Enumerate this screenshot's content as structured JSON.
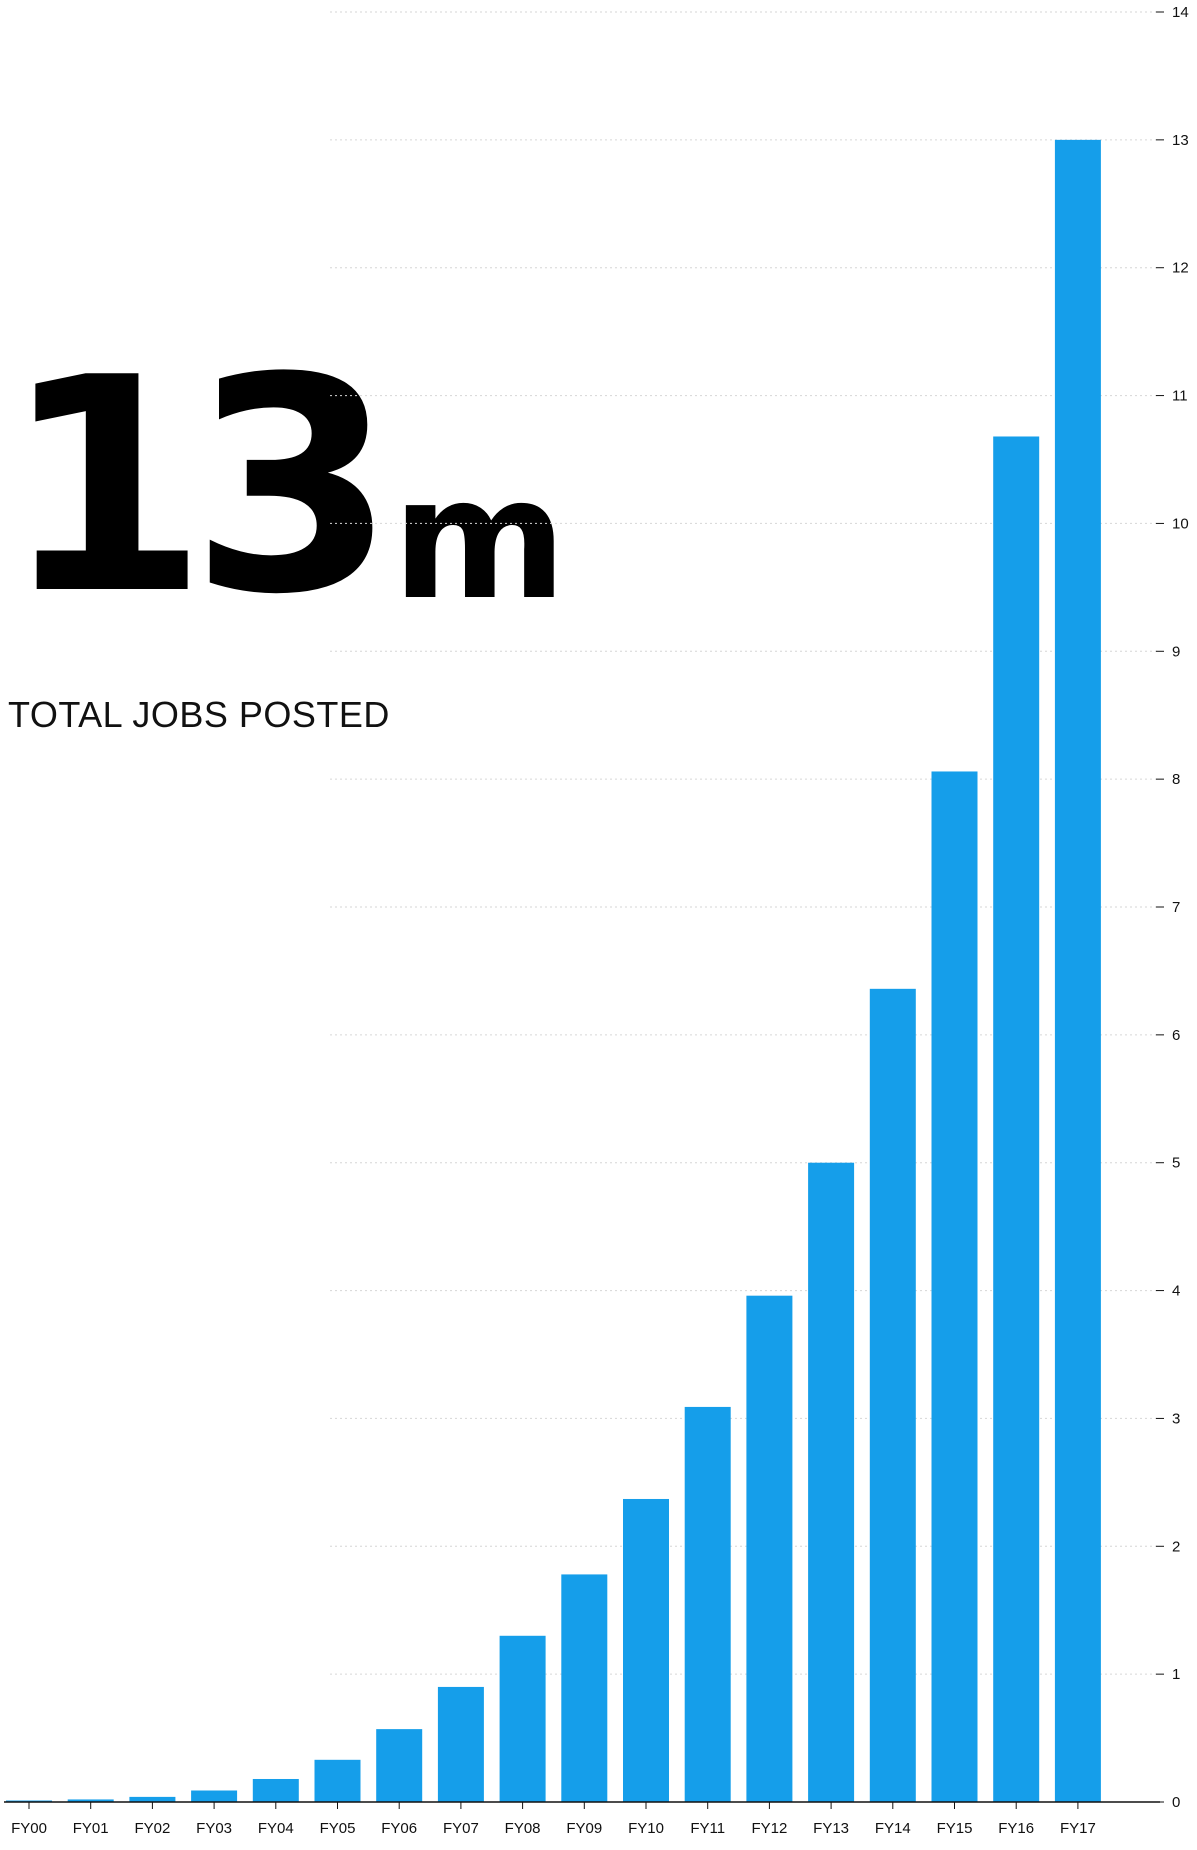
{
  "headline": {
    "value": "13",
    "unit": "m",
    "subtitle": "TOTAL JOBS POSTED"
  },
  "colors": {
    "bar": "#159EEA",
    "axis": "#111111",
    "grid": "#d6d6d6"
  },
  "chart_data": {
    "type": "bar",
    "title": "",
    "xlabel": "",
    "ylabel": "",
    "categories": [
      "FY00",
      "FY01",
      "FY02",
      "FY03",
      "FY04",
      "FY05",
      "FY06",
      "FY07",
      "FY08",
      "FY09",
      "FY10",
      "FY11",
      "FY12",
      "FY13",
      "FY14",
      "FY15",
      "FY16",
      "FY17"
    ],
    "values": [
      0.01,
      0.02,
      0.04,
      0.09,
      0.18,
      0.33,
      0.57,
      0.9,
      1.3,
      1.78,
      2.37,
      3.09,
      3.96,
      5.0,
      6.36,
      8.06,
      10.68,
      13.0
    ],
    "ylim": [
      0,
      14
    ],
    "yticks": [
      0,
      1,
      2,
      3,
      4,
      5,
      6,
      7,
      8,
      9,
      10,
      11,
      12,
      13,
      14
    ],
    "y_axis_position": "right",
    "grid": true
  }
}
